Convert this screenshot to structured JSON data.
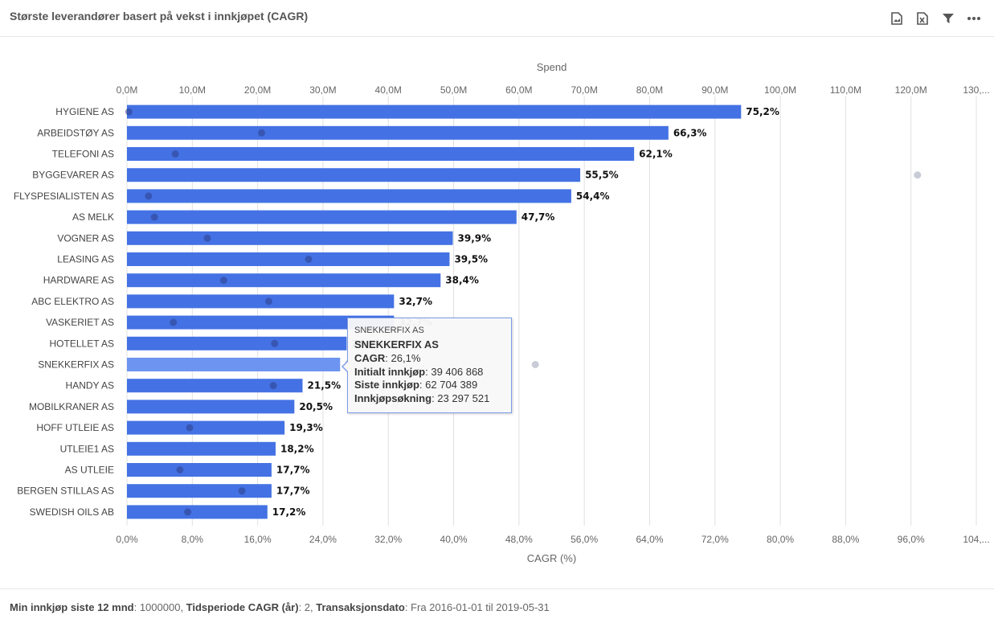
{
  "header": {
    "title": "Største leverandører basert på vekst i innkjøpet (CAGR)",
    "icons": [
      "export-image-icon",
      "export-excel-icon",
      "filter-icon",
      "more-icon"
    ]
  },
  "colors": {
    "bar": "#4472e4",
    "bar_highlight": "#6d94f0",
    "dot": "#2d3f8a",
    "grey_dot": "#c8ccd6",
    "grid": "#e0e0e0"
  },
  "chart_data": {
    "type": "bar",
    "orientation": "horizontal",
    "categories": [
      "HYGIENE AS",
      "ARBEIDSTØY AS",
      "TELEFONI AS",
      "BYGGEVARER AS",
      "FLYSPESIALISTEN AS",
      "AS MELK",
      "VOGNER AS",
      "LEASING AS",
      "HARDWARE AS",
      "ABC ELEKTRO AS",
      "VASKERIET AS",
      "HOTELLET AS",
      "SNEKKERFIX AS",
      "HANDY AS",
      "MOBILKRANER AS",
      "HOFF UTLEIE AS",
      "UTLEIE1 AS",
      "AS UTLEIE",
      "BERGEN STILLAS AS",
      "SWEDISH OILS AB"
    ],
    "series": [
      {
        "name": "CAGR (%)",
        "values": [
          75.2,
          66.3,
          62.1,
          55.5,
          54.4,
          47.7,
          39.9,
          39.5,
          38.4,
          32.7,
          32.7,
          26.9,
          26.1,
          21.5,
          20.5,
          19.3,
          18.2,
          17.7,
          17.7,
          17.2
        ]
      },
      {
        "name": "Spend",
        "values": [
          0.3,
          20.6,
          7.4,
          null,
          3.3,
          4.2,
          12.3,
          27.8,
          14.8,
          21.7,
          7.1,
          22.6,
          null,
          22.4,
          null,
          9.6,
          null,
          8.1,
          17.6,
          9.3
        ]
      }
    ],
    "data_labels": [
      "75,2%",
      "66,3%",
      "62,1%",
      "55,5%",
      "54,4%",
      "47,7%",
      "39,9%",
      "39,5%",
      "38,4%",
      "32,7%",
      "32,7%",
      "26,9%",
      "26,1%",
      "21,5%",
      "20,5%",
      "19,3%",
      "18,2%",
      "17,7%",
      "17,7%",
      "17,2%"
    ],
    "highlighted_index": 12,
    "extra_points": [
      {
        "row": 3,
        "spend": 121.0
      },
      {
        "row": 12,
        "spend": 62.5
      },
      {
        "row": 14,
        "spend": 41.0
      }
    ],
    "xlabel": "CAGR (%)",
    "x2label": "Spend",
    "xlim": [
      0,
      104
    ],
    "x2lim": [
      0,
      130
    ],
    "x_ticks": [
      "0,0%",
      "8,0%",
      "16,0%",
      "24,0%",
      "32,0%",
      "40,0%",
      "48,0%",
      "56,0%",
      "64,0%",
      "72,0%",
      "80,0%",
      "88,0%",
      "96,0%",
      "104,..."
    ],
    "x2_ticks": [
      "0,0M",
      "10,0M",
      "20,0M",
      "30,0M",
      "40,0M",
      "50,0M",
      "60,0M",
      "70,0M",
      "80,0M",
      "90,0M",
      "100,0M",
      "110,0M",
      "120,0M",
      "130,..."
    ]
  },
  "tooltip": {
    "header": "SNEKKERFIX AS",
    "name": "SNEKKERFIX AS",
    "rows": [
      {
        "label": "CAGR",
        "value": "26,1%"
      },
      {
        "label": "Initialt innkjøp",
        "value": "39 406 868"
      },
      {
        "label": "Siste innkjøp",
        "value": "62 704 389"
      },
      {
        "label": "Innkjøpsøkning",
        "value": "23 297 521"
      }
    ]
  },
  "footer": {
    "items": [
      {
        "label": "Min innkjøp siste 12 mnd",
        "value": "1000000"
      },
      {
        "label": "Tidsperiode CAGR (år)",
        "value": "2"
      },
      {
        "label": "Transaksjonsdato",
        "value": "Fra 2016-01-01 til 2019-05-31"
      }
    ]
  }
}
